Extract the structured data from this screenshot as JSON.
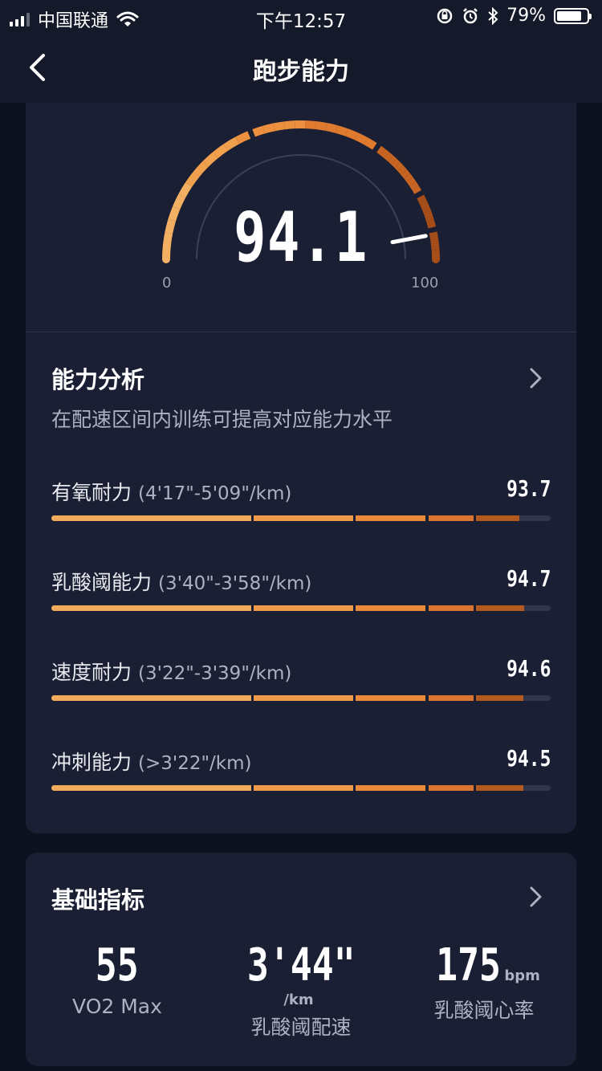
{
  "status_bar": {
    "carrier": "中国联通",
    "time": "下午12:57",
    "battery": "79%"
  },
  "nav": {
    "title": "跑步能力"
  },
  "gauge": {
    "score": "94.1",
    "score_value": 94.1,
    "min": "0",
    "max": "100"
  },
  "analysis": {
    "title": "能力分析",
    "subtitle": "在配速区间内训练可提高对应能力水平",
    "metrics": [
      {
        "name": "有氧耐力",
        "range": "(4'17\"-5'09\"/km)",
        "value": "93.7",
        "fraction": 0.937
      },
      {
        "name": "乳酸阈能力",
        "range": "(3'40\"-3'58\"/km)",
        "value": "94.7",
        "fraction": 0.947
      },
      {
        "name": "速度耐力",
        "range": "(3'22\"-3'39\"/km)",
        "value": "94.6",
        "fraction": 0.946
      },
      {
        "name": "冲刺能力",
        "range": "(>3'22\"/km)",
        "value": "94.5",
        "fraction": 0.945
      }
    ]
  },
  "basics": {
    "title": "基础指标",
    "stats": [
      {
        "value": "55",
        "unit": "",
        "label": "VO2 Max"
      },
      {
        "value": "3'44\"",
        "unit": "/km",
        "label": "乳酸阈配速"
      },
      {
        "value": "175",
        "unit": "bpm",
        "label": "乳酸阈心率"
      }
    ]
  },
  "colors": {
    "gradient_start": "#f7b563",
    "gradient_mid": "#ee8a3a",
    "gradient_end": "#8b3e14",
    "track": "#2f354b"
  }
}
